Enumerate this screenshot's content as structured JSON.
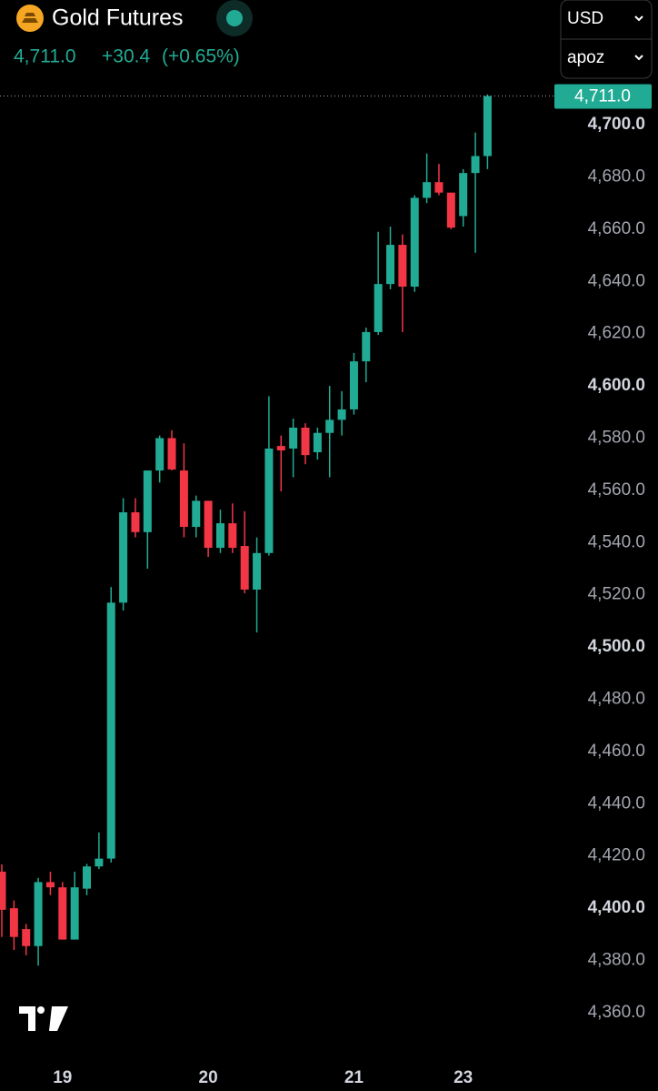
{
  "header": {
    "title": "Gold Futures",
    "price": "4,711.0",
    "change": "+30.4",
    "change_pct": "(+0.65%)",
    "currency": "USD",
    "unit": "apoz"
  },
  "chart_data": {
    "type": "candlestick",
    "categories": [
      null,
      null,
      null,
      null,
      null,
      "19",
      null,
      null,
      null,
      null,
      null,
      null,
      null,
      null,
      null,
      null,
      null,
      "20",
      null,
      null,
      null,
      null,
      null,
      null,
      null,
      null,
      null,
      null,
      null,
      "21",
      null,
      null,
      null,
      null,
      null,
      null,
      null,
      null,
      "23",
      null,
      null
    ],
    "open": [
      4414,
      4400,
      4392,
      4385.5,
      4410,
      4408,
      4388,
      4407.5,
      4416,
      4419,
      4517,
      4551.6,
      4544,
      4567.6,
      4580,
      4567.6,
      4546,
      4556,
      4538,
      4547.4,
      4538.7,
      4522,
      4536,
      4577,
      4576,
      4584,
      4574.6,
      4582,
      4587,
      4591,
      4609.4,
      4620.6,
      4639,
      4654,
      4638,
      4672,
      4678,
      4674,
      4665,
      4681.5,
      4688
    ],
    "high": [
      4416.8,
      4403,
      4394,
      4411.6,
      4414,
      4410,
      4414,
      4417,
      4429,
      4523,
      4557,
      4557,
      4567.6,
      4581,
      4583,
      4578,
      4558,
      4556,
      4552.6,
      4555,
      4552,
      4542,
      4596,
      4581,
      4587.5,
      4585.7,
      4584,
      4600,
      4598,
      4612.6,
      4622.3,
      4659,
      4661,
      4658,
      4673,
      4689,
      4685,
      4674,
      4683,
      4697,
      4711.6
    ],
    "low": [
      4389,
      4384,
      4382,
      4378,
      4405,
      4388,
      4388,
      4405,
      4415,
      4417.5,
      4514,
      4542,
      4530,
      4563,
      4567.6,
      4542,
      4542,
      4534.5,
      4536,
      4536,
      4520.6,
      4505.6,
      4535,
      4559.6,
      4565,
      4570,
      4571.8,
      4565,
      4581,
      4589,
      4601.4,
      4619.5,
      4637,
      4620.6,
      4636,
      4670,
      4673,
      4660,
      4661,
      4651,
      4683
    ],
    "close": [
      4399.4,
      4389,
      4385.5,
      4410,
      4408,
      4388,
      4408,
      4416,
      4419,
      4517,
      4551.6,
      4544,
      4567.6,
      4580,
      4568,
      4546,
      4556,
      4538,
      4547.4,
      4538,
      4522,
      4536,
      4576,
      4575.3,
      4584,
      4573.5,
      4582,
      4587,
      4591,
      4609.4,
      4620.6,
      4639,
      4654,
      4638,
      4672,
      4678,
      4674,
      4660.6,
      4681.5,
      4688,
      4711
    ],
    "up_color": "#22ab94",
    "down_color": "#f23645",
    "ylim": [
      4345,
      4715
    ],
    "yticks": [
      {
        "value": 4360,
        "label": "4,360.0"
      },
      {
        "value": 4380,
        "label": "4,380.0"
      },
      {
        "value": 4400,
        "label": "4,400.0"
      },
      {
        "value": 4420,
        "label": "4,420.0"
      },
      {
        "value": 4440,
        "label": "4,440.0"
      },
      {
        "value": 4460,
        "label": "4,460.0"
      },
      {
        "value": 4480,
        "label": "4,480.0"
      },
      {
        "value": 4500,
        "label": "4,500.0"
      },
      {
        "value": 4520,
        "label": "4,520.0"
      },
      {
        "value": 4540,
        "label": "4,540.0"
      },
      {
        "value": 4560,
        "label": "4,560.0"
      },
      {
        "value": 4580,
        "label": "4,580.0"
      },
      {
        "value": 4600,
        "label": "4,600.0"
      },
      {
        "value": 4620,
        "label": "4,620.0"
      },
      {
        "value": 4640,
        "label": "4,640.0"
      },
      {
        "value": 4660,
        "label": "4,660.0"
      },
      {
        "value": 4680,
        "label": "4,680.0"
      },
      {
        "value": 4700,
        "label": "4,700.0"
      }
    ],
    "last_price": {
      "value": 4711,
      "label": "4,711.0"
    }
  }
}
